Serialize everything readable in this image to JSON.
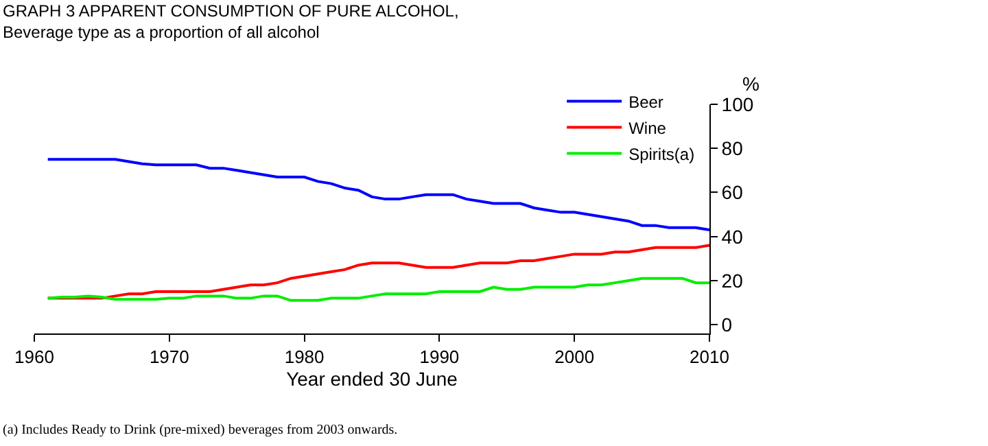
{
  "chart_data": {
    "type": "line",
    "title": "GRAPH 3 APPARENT CONSUMPTION OF PURE ALCOHOL,",
    "subtitle": "Beverage type as a proportion of all alcohol",
    "xlabel": "Year ended 30 June",
    "ylabel": "%",
    "x": [
      1961,
      1962,
      1963,
      1964,
      1965,
      1966,
      1967,
      1968,
      1969,
      1970,
      1971,
      1972,
      1973,
      1974,
      1975,
      1976,
      1977,
      1978,
      1979,
      1980,
      1981,
      1982,
      1983,
      1984,
      1985,
      1986,
      1987,
      1988,
      1989,
      1990,
      1991,
      1992,
      1993,
      1994,
      1995,
      1996,
      1997,
      1998,
      1999,
      2000,
      2001,
      2002,
      2003,
      2004,
      2005,
      2006,
      2007,
      2008,
      2009,
      2010
    ],
    "series": [
      {
        "name": "Beer",
        "color": "#0000ff",
        "values": [
          75,
          75,
          75,
          75,
          75,
          75,
          74,
          73,
          72.5,
          72.5,
          72.5,
          72.5,
          71,
          71,
          70,
          69,
          68,
          67,
          67,
          67,
          65,
          64,
          62,
          61,
          58,
          57,
          57,
          58,
          59,
          59,
          59,
          57,
          56,
          55,
          55,
          55,
          53,
          52,
          51,
          51,
          50,
          49,
          48,
          47,
          45,
          45,
          44,
          44,
          44,
          43
        ]
      },
      {
        "name": "Wine",
        "color": "#ff0000",
        "values": [
          12,
          12,
          12,
          12,
          12,
          13,
          14,
          14,
          15,
          15,
          15,
          15,
          15,
          16,
          17,
          18,
          18,
          19,
          21,
          22,
          23,
          24,
          25,
          27,
          28,
          28,
          28,
          27,
          26,
          26,
          26,
          27,
          28,
          28,
          28,
          29,
          29,
          30,
          31,
          32,
          32,
          32,
          33,
          33,
          34,
          35,
          35,
          35,
          35,
          36
        ]
      },
      {
        "name": "Spirits(a)",
        "color": "#00ee00",
        "values": [
          12,
          12.5,
          12.5,
          13,
          12.5,
          11.5,
          11.5,
          11.5,
          11.5,
          12,
          12,
          13,
          13,
          13,
          12,
          12,
          13,
          13,
          11,
          11,
          11,
          12,
          12,
          12,
          13,
          14,
          14,
          14,
          14,
          15,
          15,
          15,
          15,
          17,
          16,
          16,
          17,
          17,
          17,
          17,
          18,
          18,
          19,
          20,
          21,
          21,
          21,
          21,
          19,
          19
        ]
      }
    ],
    "xlim": [
      1960,
      2010
    ],
    "xticks": [
      1960,
      1970,
      1980,
      1990,
      2000,
      2010
    ],
    "ylim": [
      -4,
      100
    ],
    "yticks": [
      0,
      20,
      40,
      60,
      80,
      100
    ],
    "legend": "top right",
    "marker": "none",
    "line_style": "solid",
    "annotations": [
      "(a) Includes Ready to Drink (pre-mixed) beverages from 2003 onwards."
    ]
  }
}
